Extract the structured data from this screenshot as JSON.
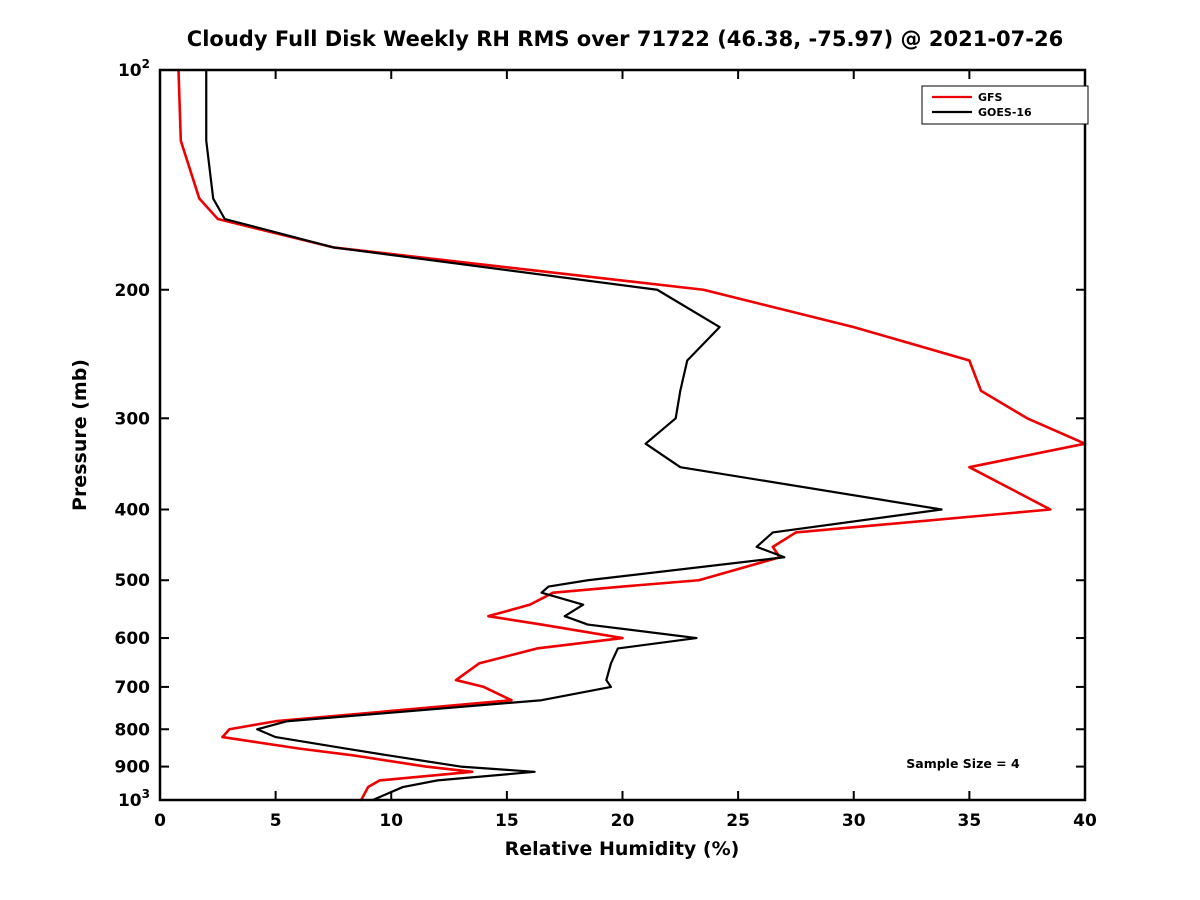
{
  "chart_data": {
    "type": "line",
    "title": "Cloudy Full Disk Weekly RH RMS over 71722 (46.38, -75.97) @ 2021-07-26",
    "xlabel": "Relative Humidity (%)",
    "ylabel": "Pressure (mb)",
    "xlim": [
      0,
      40
    ],
    "xticks": [
      0,
      5,
      10,
      15,
      20,
      25,
      30,
      35,
      40
    ],
    "yscale": "log",
    "y_axis_inverted": true,
    "ylim": [
      100,
      1000
    ],
    "yticks": [
      {
        "value": 100,
        "label": "10^2"
      },
      {
        "value": 200,
        "label": "200"
      },
      {
        "value": 300,
        "label": "300"
      },
      {
        "value": 400,
        "label": "400"
      },
      {
        "value": 500,
        "label": "500"
      },
      {
        "value": 600,
        "label": "600"
      },
      {
        "value": 700,
        "label": "700"
      },
      {
        "value": 800,
        "label": "800"
      },
      {
        "value": 900,
        "label": "900"
      },
      {
        "value": 1000,
        "label": "10^3"
      }
    ],
    "grid": false,
    "legend_position": "top-right",
    "annotation": "Sample Size = 4",
    "pressure_levels_mb": [
      100,
      125,
      150,
      160,
      175,
      200,
      225,
      250,
      275,
      300,
      325,
      350,
      400,
      430,
      450,
      465,
      500,
      510,
      520,
      540,
      560,
      575,
      600,
      620,
      650,
      685,
      700,
      730,
      780,
      800,
      820,
      850,
      870,
      900,
      915,
      940,
      960,
      1000
    ],
    "series": [
      {
        "name": "GFS",
        "color": "#ee0000",
        "values": [
          0.8,
          0.9,
          1.7,
          2.5,
          7.5,
          23.5,
          30.0,
          35.0,
          35.5,
          37.5,
          40.0,
          35.0,
          38.5,
          27.5,
          26.5,
          26.8,
          23.3,
          20.0,
          17.0,
          16.0,
          14.2,
          16.5,
          20.0,
          16.3,
          13.8,
          12.8,
          14.0,
          15.2,
          5.0,
          3.0,
          2.7,
          6.0,
          8.5,
          11.5,
          13.5,
          9.5,
          9.0,
          8.7
        ]
      },
      {
        "name": "GOES-16",
        "color": "#000000",
        "values": [
          2.0,
          2.0,
          2.3,
          2.8,
          7.5,
          21.5,
          24.2,
          22.8,
          22.5,
          22.3,
          21.0,
          22.5,
          33.8,
          26.5,
          25.8,
          27.0,
          18.5,
          16.8,
          16.5,
          18.3,
          17.5,
          18.5,
          23.2,
          19.8,
          19.5,
          19.3,
          19.5,
          16.5,
          5.5,
          4.2,
          5.0,
          8.0,
          10.0,
          13.0,
          16.2,
          12.0,
          10.5,
          9.2
        ]
      }
    ]
  }
}
